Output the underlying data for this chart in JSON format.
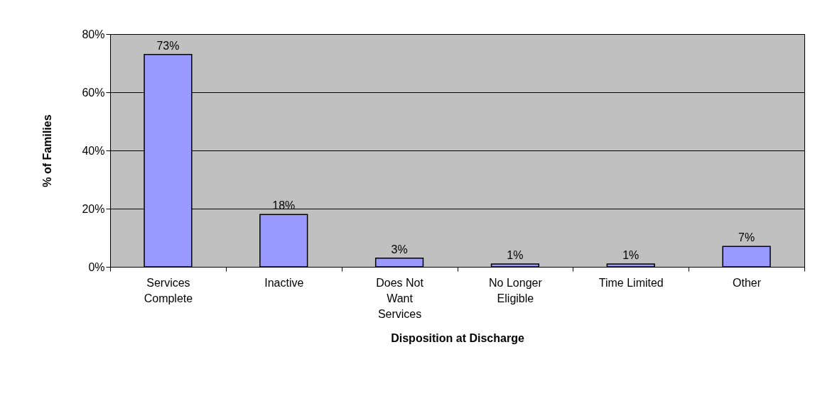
{
  "chart_data": {
    "type": "bar",
    "xlabel": "Disposition at Discharge",
    "ylabel": "% of Families",
    "categories": [
      "Services Complete",
      "Inactive",
      "Does Not Want Services",
      "No Longer Eligible",
      "Time Limited",
      "Other"
    ],
    "values": [
      73,
      18,
      3,
      1,
      1,
      7
    ],
    "value_labels": [
      "73%",
      "18%",
      "3%",
      "1%",
      "1%",
      "7%"
    ],
    "color": "#9999ff",
    "ylim": [
      0,
      80
    ],
    "yticks": [
      {
        "value": 0,
        "label": "0%"
      },
      {
        "value": 20,
        "label": "20%"
      },
      {
        "value": 40,
        "label": "40%"
      },
      {
        "value": 60,
        "label": "60%"
      },
      {
        "value": 80,
        "label": "80%"
      }
    ],
    "grid": "y"
  }
}
